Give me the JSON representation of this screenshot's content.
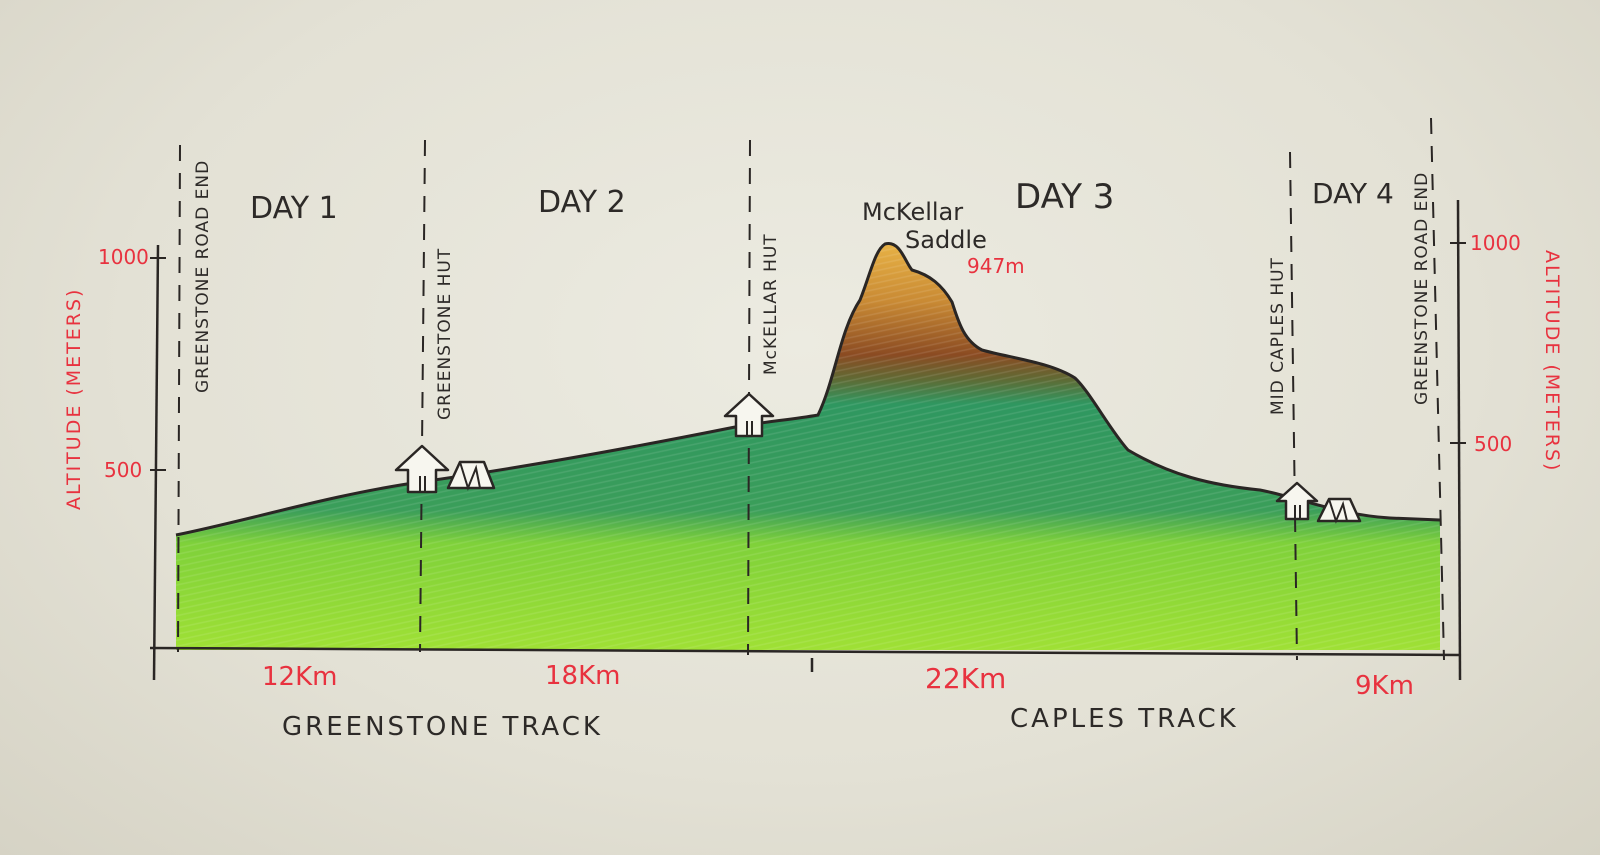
{
  "title": "",
  "days": [
    {
      "label": "DAY 1"
    },
    {
      "label": "DAY 2"
    },
    {
      "label": "DAY 3"
    },
    {
      "label": "DAY 4"
    }
  ],
  "locations": [
    {
      "name": "GREENSTONE ROAD END"
    },
    {
      "name": "GREENSTONE HUT"
    },
    {
      "name": "McKELLAR HUT"
    },
    {
      "name": "MID CAPLES HUT"
    },
    {
      "name": "GREENSTONE ROAD END"
    }
  ],
  "peak": {
    "name_line1": "McKellar",
    "name_line2": "Saddle",
    "elevation": "947m"
  },
  "distances": [
    "12Km",
    "18Km",
    "22Km",
    "9Km"
  ],
  "tracks": [
    "GREENSTONE TRACK",
    "CAPLES TRACK"
  ],
  "axes": {
    "left_label": "ALTITUDE (METERS)",
    "right_label": "ALTITUDE (METERS)",
    "ticks": [
      "1000",
      "500"
    ]
  },
  "colors": {
    "low": "#8fdc2e",
    "mid": "#2f9a5a",
    "high": "#7a4a22",
    "peak": "#e5a43a",
    "red": "#e8323f",
    "ink": "#2d2a28"
  }
}
